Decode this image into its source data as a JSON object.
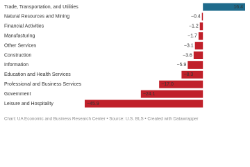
{
  "chart_data": {
    "type": "bar",
    "orientation": "horizontal",
    "categories": [
      "Trade, Transportation, and Utilities",
      "Natural Resources and Mining",
      "Financial Activities",
      "Manufacturing",
      "Other Services",
      "Construction",
      "Information",
      "Education and Health Services",
      "Professional and Business Services",
      "Government",
      "Leisure and Hospitality"
    ],
    "values": [
      16.4,
      -0.4,
      -1.2,
      -1.7,
      -3.1,
      -3.6,
      -5.9,
      -8.3,
      -17.0,
      -24.1,
      -45.9
    ],
    "value_labels": [
      "16.4",
      "−0.4",
      "−1.2",
      "−1.7",
      "−3.1",
      "−3.6",
      "−5.9",
      "−8.3",
      "−17.0",
      "−24.1",
      "−45.9"
    ],
    "positive_color": "#1f6b8c",
    "negative_color": "#c0202a",
    "xlim": [
      -45.9,
      16.4
    ],
    "footer": "Chart: UA Economic and Business Research Center • Source: U.S. BLS • Created with Datawrapper"
  }
}
